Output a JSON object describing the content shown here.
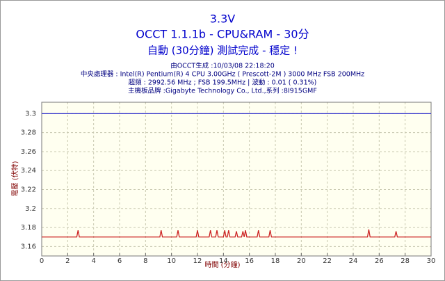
{
  "chart_data": {
    "type": "line",
    "title": "3.3V",
    "subtitle": "OCCT 1.1.1b - CPU&RAM - 30分",
    "status": "自動 (30分鐘) 測試完成 - 穩定 !",
    "info": [
      "由OCCT生成 :10/03/08 22:18:20",
      "中央處理器 : Intel(R) Pentium(R) 4 CPU 3.00GHz ( Prescott-2M ) 3000 MHz FSB 200MHz",
      "超頻 : 2992.56 MHz ; FSB 199.5MHz | 波動 : 0.01 ( 0.31%)",
      "主機板品牌 :Gigabyte Technology Co., Ltd.,系列 :8I915GMF"
    ],
    "x_label": "時間 (分鐘)",
    "y_label": "電壓 (伏特)",
    "xlim": [
      0,
      30
    ],
    "ylim": [
      3.15,
      3.312
    ],
    "xticks": [
      0,
      2,
      4,
      6,
      8,
      10,
      12,
      14,
      16,
      18,
      20,
      22,
      24,
      26,
      28,
      30
    ],
    "yticks": [
      3.16,
      3.18,
      3.2,
      3.22,
      3.24,
      3.26,
      3.28,
      3.3
    ],
    "grid": true,
    "series": [
      {
        "color": "#3333cc",
        "x": [
          0,
          30
        ],
        "values": [
          3.3,
          3.3
        ]
      },
      {
        "color": "#cc2222",
        "x": [
          0,
          2.7,
          2.8,
          2.9,
          9.1,
          9.2,
          9.3,
          10.4,
          10.5,
          10.6,
          11.9,
          12.0,
          12.1,
          12.9,
          13.0,
          13.1,
          13.4,
          13.5,
          13.6,
          14.0,
          14.1,
          14.2,
          14.3,
          14.4,
          14.5,
          14.9,
          15.0,
          15.1,
          15.4,
          15.5,
          15.6,
          15.6,
          15.7,
          15.8,
          16.6,
          16.7,
          16.8,
          17.5,
          17.6,
          17.7,
          25.1,
          25.2,
          25.3,
          27.2,
          27.3,
          27.4,
          30
        ],
        "values": [
          3.17,
          3.17,
          3.177,
          3.17,
          3.17,
          3.177,
          3.17,
          3.17,
          3.177,
          3.17,
          3.17,
          3.177,
          3.17,
          3.17,
          3.177,
          3.17,
          3.17,
          3.177,
          3.17,
          3.17,
          3.177,
          3.17,
          3.17,
          3.177,
          3.17,
          3.17,
          3.176,
          3.17,
          3.17,
          3.176,
          3.17,
          3.17,
          3.177,
          3.17,
          3.17,
          3.177,
          3.17,
          3.17,
          3.177,
          3.17,
          3.17,
          3.178,
          3.17,
          3.17,
          3.176,
          3.17,
          3.17
        ]
      }
    ]
  }
}
